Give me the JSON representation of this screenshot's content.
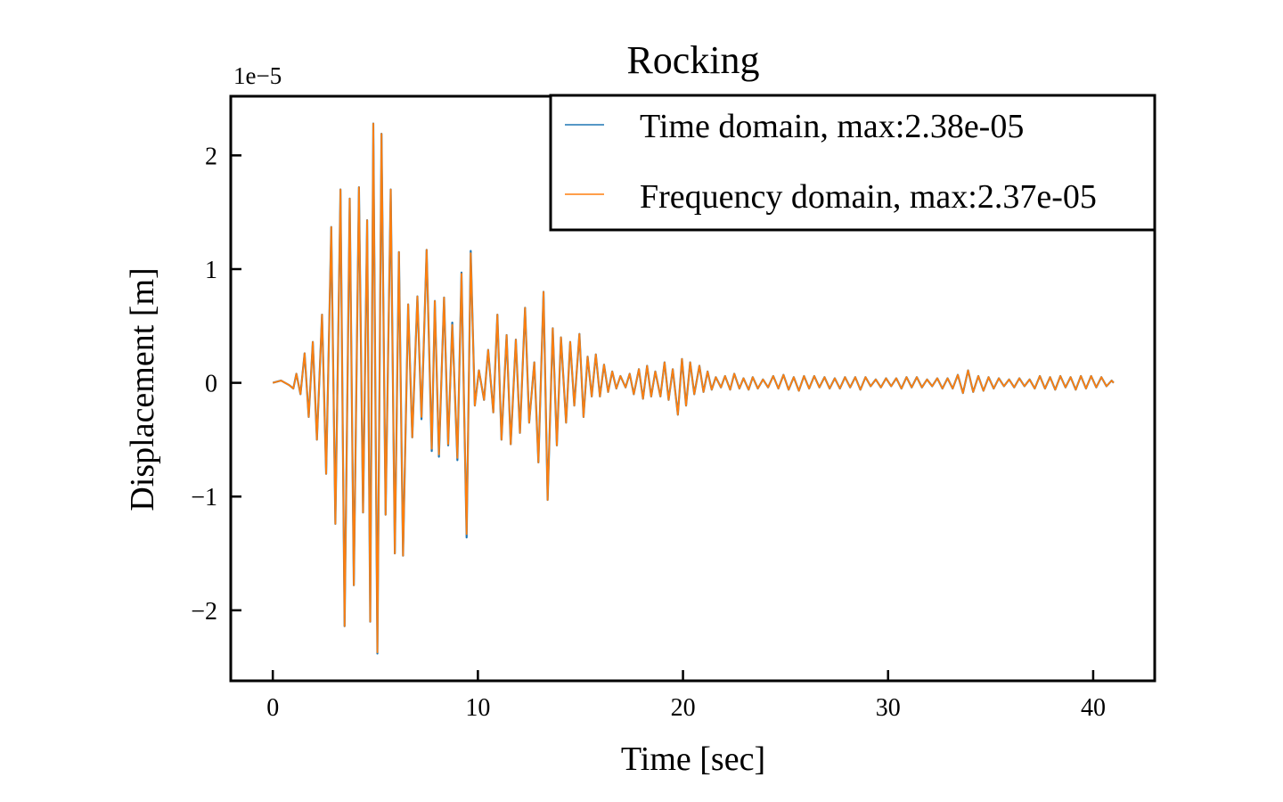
{
  "chart_data": {
    "type": "line",
    "title": "Rocking",
    "xlabel": "Time [sec]",
    "ylabel": "Displacement [m]",
    "y_offset_label": "1e−5",
    "y_scale_factor": 1e-05,
    "xlim": [
      -2.05,
      43.0
    ],
    "ylim": [
      -2.62,
      2.52
    ],
    "x_ticks": [
      0,
      10,
      20,
      30,
      40
    ],
    "x_tick_labels": [
      "0",
      "10",
      "20",
      "30",
      "40"
    ],
    "y_ticks": [
      -2,
      -1,
      0,
      1,
      2
    ],
    "y_tick_labels": [
      "−2",
      "−1",
      "0",
      "1",
      "2"
    ],
    "grid": false,
    "legend_position": "top-right",
    "series": [
      {
        "name": "Time domain, max:2.38e-05",
        "color": "#1f77b4",
        "x": [
          0.0,
          0.4,
          0.8,
          1.0,
          1.15,
          1.35,
          1.55,
          1.75,
          1.95,
          2.15,
          2.4,
          2.6,
          2.85,
          3.05,
          3.3,
          3.5,
          3.75,
          3.95,
          4.2,
          4.4,
          4.6,
          4.75,
          4.9,
          5.1,
          5.3,
          5.5,
          5.75,
          5.95,
          6.15,
          6.35,
          6.6,
          6.8,
          7.05,
          7.25,
          7.5,
          7.75,
          7.9,
          8.1,
          8.35,
          8.55,
          8.75,
          9.0,
          9.2,
          9.45,
          9.65,
          9.85,
          10.05,
          10.3,
          10.5,
          10.75,
          10.95,
          11.15,
          11.4,
          11.6,
          11.85,
          12.05,
          12.3,
          12.5,
          12.75,
          12.95,
          13.2,
          13.4,
          13.65,
          13.85,
          14.05,
          14.3,
          14.5,
          14.7,
          14.95,
          15.15,
          15.35,
          15.55,
          15.75,
          15.95,
          16.15,
          16.35,
          16.55,
          16.75,
          16.95,
          17.2,
          17.4,
          17.6,
          17.85,
          18.05,
          18.25,
          18.45,
          18.65,
          18.9,
          19.1,
          19.3,
          19.5,
          19.75,
          19.95,
          20.15,
          20.35,
          20.55,
          20.8,
          21.0,
          21.2,
          21.4,
          21.6,
          21.85,
          22.05,
          22.3,
          22.5,
          22.75,
          22.95,
          23.2,
          23.4,
          23.65,
          23.9,
          24.15,
          24.4,
          24.65,
          24.9,
          25.15,
          25.4,
          25.65,
          25.9,
          26.15,
          26.4,
          26.65,
          26.9,
          27.15,
          27.4,
          27.65,
          27.9,
          28.15,
          28.4,
          28.65,
          28.9,
          29.15,
          29.4,
          29.65,
          29.9,
          30.15,
          30.4,
          30.65,
          30.9,
          31.15,
          31.4,
          31.65,
          31.9,
          32.15,
          32.4,
          32.65,
          32.9,
          33.15,
          33.4,
          33.65,
          33.9,
          34.15,
          34.4,
          34.65,
          34.9,
          35.15,
          35.4,
          35.65,
          35.9,
          36.15,
          36.4,
          36.65,
          36.9,
          37.15,
          37.4,
          37.65,
          37.9,
          38.15,
          38.4,
          38.65,
          38.9,
          39.15,
          39.4,
          39.65,
          39.9,
          40.15,
          40.4,
          40.65,
          40.9,
          41.0
        ],
        "y": [
          0.0,
          0.02,
          -0.02,
          -0.05,
          0.08,
          -0.1,
          0.26,
          -0.3,
          0.36,
          -0.5,
          0.6,
          -0.8,
          1.37,
          -1.24,
          1.7,
          -2.14,
          1.62,
          -1.78,
          1.72,
          -1.14,
          1.43,
          -2.1,
          2.28,
          -2.38,
          2.19,
          -1.16,
          1.7,
          -1.5,
          1.15,
          -1.52,
          0.69,
          -0.48,
          0.76,
          -0.32,
          1.17,
          -0.6,
          0.72,
          -0.65,
          0.75,
          -0.55,
          0.53,
          -0.68,
          0.97,
          -1.36,
          1.16,
          -0.2,
          0.11,
          -0.15,
          0.29,
          -0.26,
          0.6,
          -0.5,
          0.42,
          -0.54,
          0.38,
          -0.44,
          0.66,
          -0.35,
          0.18,
          -0.7,
          0.8,
          -1.03,
          0.48,
          -0.55,
          0.4,
          -0.35,
          0.36,
          -0.2,
          0.43,
          -0.3,
          0.23,
          -0.12,
          0.25,
          -0.12,
          0.16,
          -0.08,
          0.1,
          -0.05,
          0.06,
          -0.04,
          0.08,
          -0.1,
          0.12,
          -0.14,
          0.15,
          -0.12,
          0.1,
          -0.12,
          0.18,
          -0.15,
          0.12,
          -0.28,
          0.21,
          -0.2,
          0.18,
          -0.1,
          0.15,
          -0.08,
          0.1,
          -0.06,
          0.05,
          -0.04,
          0.06,
          -0.06,
          0.08,
          -0.05,
          0.04,
          -0.06,
          0.05,
          -0.05,
          0.03,
          -0.04,
          0.06,
          -0.05,
          0.07,
          -0.06,
          0.05,
          -0.07,
          0.06,
          -0.05,
          0.06,
          -0.04,
          0.05,
          -0.05,
          0.04,
          -0.05,
          0.05,
          -0.04,
          0.05,
          -0.06,
          0.05,
          -0.03,
          0.03,
          -0.04,
          0.04,
          -0.03,
          0.04,
          -0.05,
          0.05,
          -0.04,
          0.05,
          -0.04,
          0.03,
          -0.03,
          0.04,
          -0.05,
          0.04,
          -0.05,
          0.07,
          -0.09,
          0.11,
          -0.08,
          0.06,
          -0.07,
          0.05,
          -0.05,
          0.04,
          -0.03,
          0.03,
          -0.04,
          0.04,
          -0.03,
          0.03,
          -0.05,
          0.06,
          -0.05,
          0.05,
          -0.06,
          0.06,
          -0.04,
          0.05,
          -0.06,
          0.06,
          -0.05,
          0.06,
          -0.04,
          0.05,
          -0.03,
          0.02,
          0.0
        ]
      },
      {
        "name": "Frequency domain, max:2.37e-05",
        "color": "#ff7f0e",
        "x": [
          0.0,
          0.4,
          0.8,
          1.0,
          1.15,
          1.35,
          1.55,
          1.75,
          1.95,
          2.15,
          2.4,
          2.6,
          2.85,
          3.05,
          3.3,
          3.5,
          3.75,
          3.95,
          4.2,
          4.4,
          4.6,
          4.75,
          4.9,
          5.1,
          5.3,
          5.5,
          5.75,
          5.95,
          6.15,
          6.35,
          6.6,
          6.8,
          7.05,
          7.25,
          7.5,
          7.75,
          7.9,
          8.1,
          8.35,
          8.55,
          8.75,
          9.0,
          9.2,
          9.45,
          9.65,
          9.85,
          10.05,
          10.3,
          10.5,
          10.75,
          10.95,
          11.15,
          11.4,
          11.6,
          11.85,
          12.05,
          12.3,
          12.5,
          12.75,
          12.95,
          13.2,
          13.4,
          13.65,
          13.85,
          14.05,
          14.3,
          14.5,
          14.7,
          14.95,
          15.15,
          15.35,
          15.55,
          15.75,
          15.95,
          16.15,
          16.35,
          16.55,
          16.75,
          16.95,
          17.2,
          17.4,
          17.6,
          17.85,
          18.05,
          18.25,
          18.45,
          18.65,
          18.9,
          19.1,
          19.3,
          19.5,
          19.75,
          19.95,
          20.15,
          20.35,
          20.55,
          20.8,
          21.0,
          21.2,
          21.4,
          21.6,
          21.85,
          22.05,
          22.3,
          22.5,
          22.75,
          22.95,
          23.2,
          23.4,
          23.65,
          23.9,
          24.15,
          24.4,
          24.65,
          24.9,
          25.15,
          25.4,
          25.65,
          25.9,
          26.15,
          26.4,
          26.65,
          26.9,
          27.15,
          27.4,
          27.65,
          27.9,
          28.15,
          28.4,
          28.65,
          28.9,
          29.15,
          29.4,
          29.65,
          29.9,
          30.15,
          30.4,
          30.65,
          30.9,
          31.15,
          31.4,
          31.65,
          31.9,
          32.15,
          32.4,
          32.65,
          32.9,
          33.15,
          33.4,
          33.65,
          33.9,
          34.15,
          34.4,
          34.65,
          34.9,
          35.15,
          35.4,
          35.65,
          35.9,
          36.15,
          36.4,
          36.65,
          36.9,
          37.15,
          37.4,
          37.65,
          37.9,
          38.15,
          38.4,
          38.65,
          38.9,
          39.15,
          39.4,
          39.65,
          39.9,
          40.15,
          40.4,
          40.65,
          40.9,
          41.0
        ],
        "y": [
          0.0,
          0.02,
          -0.02,
          -0.05,
          0.08,
          -0.1,
          0.26,
          -0.3,
          0.36,
          -0.5,
          0.6,
          -0.8,
          1.37,
          -1.24,
          1.7,
          -2.14,
          1.62,
          -1.78,
          1.72,
          -1.14,
          1.43,
          -2.1,
          2.28,
          -2.37,
          2.19,
          -1.16,
          1.7,
          -1.5,
          1.15,
          -1.52,
          0.69,
          -0.48,
          0.76,
          -0.3,
          1.17,
          -0.58,
          0.72,
          -0.63,
          0.75,
          -0.54,
          0.51,
          -0.66,
          0.96,
          -1.33,
          1.14,
          -0.2,
          0.11,
          -0.15,
          0.29,
          -0.26,
          0.6,
          -0.5,
          0.42,
          -0.54,
          0.38,
          -0.44,
          0.66,
          -0.35,
          0.18,
          -0.7,
          0.8,
          -1.03,
          0.48,
          -0.55,
          0.4,
          -0.35,
          0.36,
          -0.2,
          0.43,
          -0.3,
          0.23,
          -0.12,
          0.25,
          -0.12,
          0.16,
          -0.08,
          0.1,
          -0.05,
          0.06,
          -0.04,
          0.08,
          -0.1,
          0.12,
          -0.14,
          0.15,
          -0.12,
          0.1,
          -0.12,
          0.18,
          -0.15,
          0.12,
          -0.28,
          0.21,
          -0.2,
          0.18,
          -0.1,
          0.15,
          -0.08,
          0.1,
          -0.06,
          0.05,
          -0.04,
          0.06,
          -0.06,
          0.08,
          -0.05,
          0.04,
          -0.06,
          0.05,
          -0.05,
          0.03,
          -0.04,
          0.06,
          -0.05,
          0.07,
          -0.06,
          0.05,
          -0.07,
          0.06,
          -0.05,
          0.06,
          -0.04,
          0.05,
          -0.05,
          0.04,
          -0.05,
          0.05,
          -0.04,
          0.05,
          -0.06,
          0.05,
          -0.03,
          0.03,
          -0.04,
          0.04,
          -0.03,
          0.04,
          -0.05,
          0.05,
          -0.04,
          0.05,
          -0.04,
          0.03,
          -0.03,
          0.04,
          -0.05,
          0.04,
          -0.05,
          0.07,
          -0.09,
          0.11,
          -0.08,
          0.06,
          -0.07,
          0.05,
          -0.05,
          0.04,
          -0.03,
          0.03,
          -0.04,
          0.04,
          -0.03,
          0.03,
          -0.05,
          0.06,
          -0.05,
          0.05,
          -0.06,
          0.06,
          -0.04,
          0.05,
          -0.06,
          0.06,
          -0.05,
          0.06,
          -0.04,
          0.05,
          -0.03,
          0.02,
          0.0
        ]
      }
    ]
  }
}
